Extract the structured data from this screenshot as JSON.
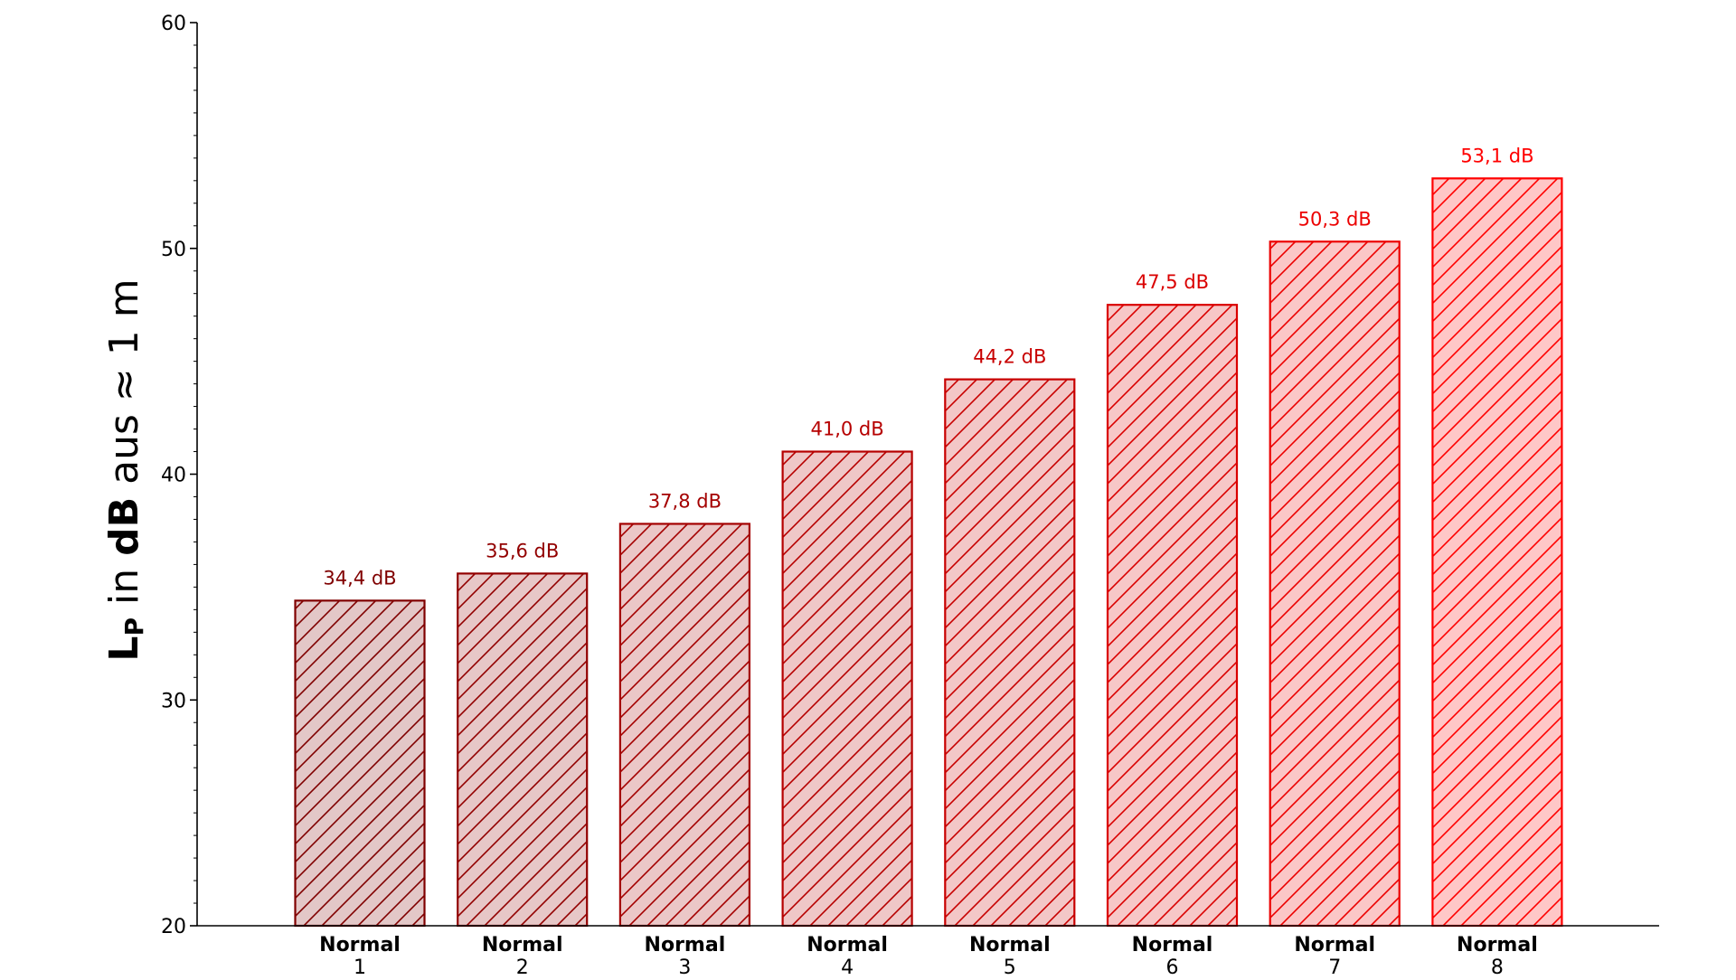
{
  "chart_data": {
    "type": "bar",
    "categories": [
      {
        "name": "Normal",
        "number": "1"
      },
      {
        "name": "Normal",
        "number": "2"
      },
      {
        "name": "Normal",
        "number": "3"
      },
      {
        "name": "Normal",
        "number": "4"
      },
      {
        "name": "Normal",
        "number": "5"
      },
      {
        "name": "Normal",
        "number": "6"
      },
      {
        "name": "Normal",
        "number": "7"
      },
      {
        "name": "Normal",
        "number": "8"
      }
    ],
    "values": [
      34.4,
      35.6,
      37.8,
      41.0,
      44.2,
      47.5,
      50.3,
      53.1
    ],
    "data_labels": [
      "34,4 dB",
      "35,6 dB",
      "37,8 dB",
      "41,0 dB",
      "44,2 dB",
      "47,5 dB",
      "50,3 dB",
      "53,1 dB"
    ],
    "bar_colors": [
      "#800000",
      "#920000",
      "#a40000",
      "#b60000",
      "#c80000",
      "#da0000",
      "#ec0000",
      "#ff0000"
    ],
    "title": "",
    "xlabel": "",
    "ylabel": {
      "symbol": "L",
      "subscript": "P",
      "in_word": " in ",
      "unit": "dB",
      "rest": " aus ≈ 1 m"
    },
    "ylim": [
      20,
      60
    ],
    "yticks": [
      20,
      30,
      40,
      50,
      60
    ],
    "minor_tick_step": 1,
    "hatch": "diagonal",
    "grid": false,
    "legend": "none"
  }
}
